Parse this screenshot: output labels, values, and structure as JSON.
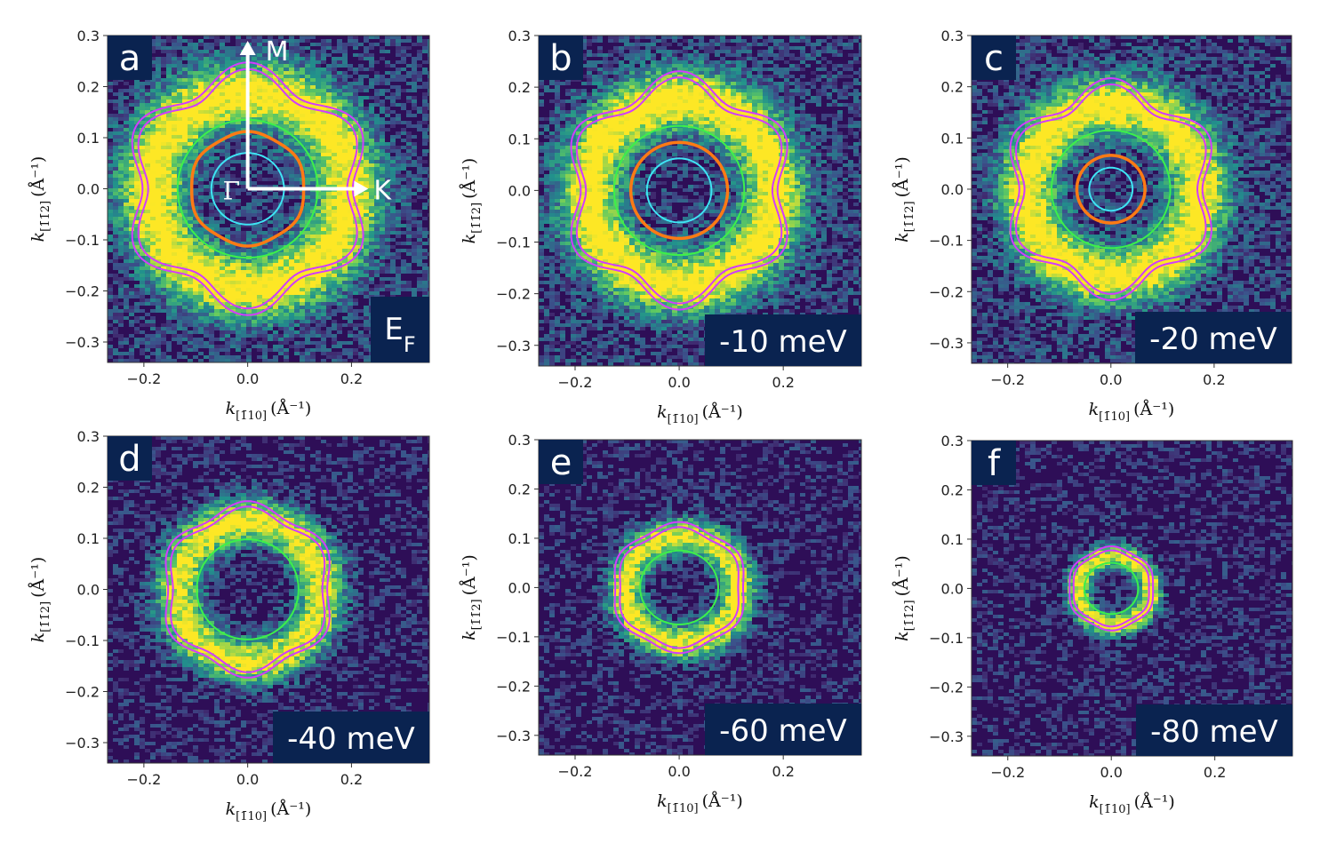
{
  "colors": {
    "map_bg": "#2e0e57",
    "label_bg": "#0a2350",
    "magenta": "#d23cff",
    "orange": "#ff7a14",
    "green": "#3cf04a",
    "cyan": "#3ee4f4",
    "white": "#ffffff"
  },
  "colormap_stops": [
    "#440154",
    "#3b528b",
    "#21918c",
    "#5ec962",
    "#fde725"
  ],
  "axes": {
    "xlabel_text": "k",
    "xlabel_sub": "[1̄10]",
    "xlabel_unit": "(Å⁻¹)",
    "ylabel_text": "k",
    "ylabel_sub": "[1̄1̄2]",
    "ylabel_unit": "(Å⁻¹)",
    "x_tick_labels": [
      "−0.2",
      "0.0",
      "0.2"
    ],
    "y_tick_labels": [
      "0.3",
      "0.2",
      "0.1",
      "0.0",
      "−0.1",
      "−0.2",
      "−0.3"
    ]
  },
  "kpoints": {
    "M": "M",
    "K": "K",
    "Gamma": "Γ"
  },
  "chart_data": [
    {
      "type": "heatmap",
      "panel": "a",
      "energy_label": "E",
      "energy_sub": "F",
      "xlabel": "k[1̄10] (Å⁻¹)",
      "ylabel": "k[1̄1̄2] (Å⁻¹)",
      "xlim": [
        -0.27,
        0.35
      ],
      "ylim": [
        -0.34,
        0.3
      ],
      "xticks": [
        -0.2,
        0.0,
        0.2
      ],
      "yticks": [
        0.3,
        0.2,
        0.1,
        0.0,
        -0.1,
        -0.2,
        -0.3
      ],
      "contours": [
        {
          "band": "magenta outer",
          "radius": 0.225,
          "hexagonal_warping": 0.1,
          "color": "magenta"
        },
        {
          "band": "magenta inner",
          "radius": 0.213,
          "hexagonal_warping": 0.1,
          "color": "magenta"
        },
        {
          "band": "green",
          "radius": 0.135,
          "hexagonal_warping": 0.0,
          "color": "green"
        },
        {
          "band": "orange",
          "radius": 0.11,
          "hexagonal_warping": 0.02,
          "color": "orange"
        },
        {
          "band": "cyan",
          "radius": 0.07,
          "hexagonal_warping": 0.0,
          "color": "cyan"
        }
      ]
    },
    {
      "type": "heatmap",
      "panel": "b",
      "energy_label": "-10 meV",
      "xlabel": "k[1̄10] (Å⁻¹)",
      "ylabel": "k[1̄1̄2] (Å⁻¹)",
      "xlim": [
        -0.27,
        0.35
      ],
      "ylim": [
        -0.34,
        0.3
      ],
      "xticks": [
        -0.2,
        0.0,
        0.2
      ],
      "yticks": [
        0.3,
        0.2,
        0.1,
        0.0,
        -0.1,
        -0.2,
        -0.3
      ],
      "contours": [
        {
          "band": "magenta outer",
          "radius": 0.21,
          "hexagonal_warping": 0.1,
          "color": "magenta"
        },
        {
          "band": "magenta inner",
          "radius": 0.199,
          "hexagonal_warping": 0.1,
          "color": "magenta"
        },
        {
          "band": "green",
          "radius": 0.125,
          "hexagonal_warping": 0.0,
          "color": "green"
        },
        {
          "band": "orange",
          "radius": 0.093,
          "hexagonal_warping": 0.0,
          "color": "orange"
        },
        {
          "band": "cyan",
          "radius": 0.062,
          "hexagonal_warping": 0.0,
          "color": "cyan"
        }
      ]
    },
    {
      "type": "heatmap",
      "panel": "c",
      "energy_label": "-20 meV",
      "xlabel": "k[1̄10] (Å⁻¹)",
      "ylabel": "k[1̄1̄2] (Å⁻¹)",
      "xlim": [
        -0.27,
        0.35
      ],
      "ylim": [
        -0.34,
        0.3
      ],
      "xticks": [
        -0.2,
        0.0,
        0.2
      ],
      "yticks": [
        0.3,
        0.2,
        0.1,
        0.0,
        -0.1,
        -0.2,
        -0.3
      ],
      "contours": [
        {
          "band": "magenta outer",
          "radius": 0.197,
          "hexagonal_warping": 0.1,
          "color": "magenta"
        },
        {
          "band": "magenta inner",
          "radius": 0.186,
          "hexagonal_warping": 0.1,
          "color": "magenta"
        },
        {
          "band": "green",
          "radius": 0.115,
          "hexagonal_warping": 0.0,
          "color": "green"
        },
        {
          "band": "orange",
          "radius": 0.066,
          "hexagonal_warping": 0.0,
          "color": "orange"
        },
        {
          "band": "cyan",
          "radius": 0.042,
          "hexagonal_warping": 0.0,
          "color": "cyan"
        }
      ]
    },
    {
      "type": "heatmap",
      "panel": "d",
      "energy_label": "-40 meV",
      "xlabel": "k[1̄10] (Å⁻¹)",
      "ylabel": "k[1̄1̄2] (Å⁻¹)",
      "xlim": [
        -0.27,
        0.35
      ],
      "ylim": [
        -0.34,
        0.3
      ],
      "xticks": [
        -0.2,
        0.0,
        0.2
      ],
      "yticks": [
        0.3,
        0.2,
        0.1,
        0.0,
        -0.1,
        -0.2,
        -0.3
      ],
      "contours": [
        {
          "band": "magenta outer",
          "radius": 0.163,
          "hexagonal_warping": 0.06,
          "color": "magenta"
        },
        {
          "band": "magenta inner",
          "radius": 0.153,
          "hexagonal_warping": 0.06,
          "color": "magenta"
        },
        {
          "band": "green",
          "radius": 0.098,
          "hexagonal_warping": 0.0,
          "color": "green"
        }
      ]
    },
    {
      "type": "heatmap",
      "panel": "e",
      "energy_label": "-60 meV",
      "xlabel": "k[1̄10] (Å⁻¹)",
      "ylabel": "k[1̄1̄2] (Å⁻¹)",
      "xlim": [
        -0.27,
        0.35
      ],
      "ylim": [
        -0.34,
        0.3
      ],
      "xticks": [
        -0.2,
        0.0,
        0.2
      ],
      "yticks": [
        0.3,
        0.2,
        0.1,
        0.0,
        -0.1,
        -0.2,
        -0.3
      ],
      "contours": [
        {
          "band": "magenta outer",
          "radius": 0.128,
          "hexagonal_warping": 0.04,
          "color": "magenta"
        },
        {
          "band": "magenta inner",
          "radius": 0.118,
          "hexagonal_warping": 0.04,
          "color": "magenta"
        },
        {
          "band": "green",
          "radius": 0.075,
          "hexagonal_warping": 0.0,
          "color": "green"
        }
      ]
    },
    {
      "type": "heatmap",
      "panel": "f",
      "energy_label": "-80 meV",
      "xlabel": "k[1̄10] (Å⁻¹)",
      "ylabel": "k[1̄1̄2] (Å⁻¹)",
      "xlim": [
        -0.27,
        0.35
      ],
      "ylim": [
        -0.34,
        0.3
      ],
      "xticks": [
        -0.2,
        0.0,
        0.2
      ],
      "yticks": [
        0.3,
        0.2,
        0.1,
        0.0,
        -0.1,
        -0.2,
        -0.3
      ],
      "contours": [
        {
          "band": "magenta outer",
          "radius": 0.083,
          "hexagonal_warping": 0.03,
          "color": "magenta"
        },
        {
          "band": "magenta inner",
          "radius": 0.075,
          "hexagonal_warping": 0.03,
          "color": "magenta"
        },
        {
          "band": "green",
          "radius": 0.052,
          "hexagonal_warping": 0.0,
          "color": "green"
        }
      ]
    }
  ]
}
